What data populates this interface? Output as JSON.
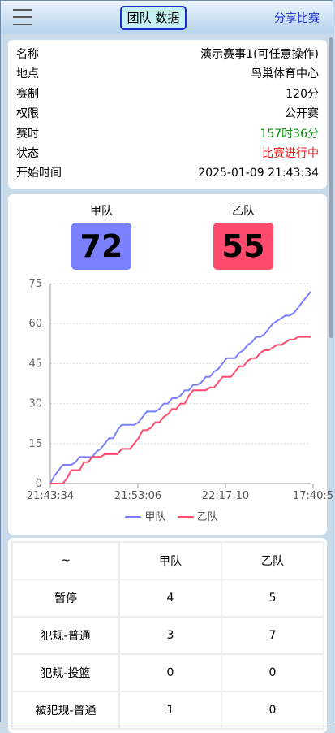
{
  "header": {
    "tab_label": "团队 数据",
    "share_label": "分享比赛"
  },
  "info": [
    {
      "label": "名称",
      "value": "演示赛事1(可任意操作)",
      "tone": ""
    },
    {
      "label": "地点",
      "value": "鸟巢体育中心",
      "tone": ""
    },
    {
      "label": "赛制",
      "value": "120分",
      "tone": ""
    },
    {
      "label": "权限",
      "value": "公开赛",
      "tone": ""
    },
    {
      "label": "赛时",
      "value": "157时36分",
      "tone": "green"
    },
    {
      "label": "状态",
      "value": "比赛进行中",
      "tone": "red"
    },
    {
      "label": "开始时间",
      "value": "2025-01-09 21:43:34",
      "tone": ""
    }
  ],
  "teams": {
    "a": {
      "name": "甲队",
      "score": "72",
      "color": "#7b80ff"
    },
    "b": {
      "name": "乙队",
      "score": "55",
      "color": "#ff4a6e"
    }
  },
  "chart_data": {
    "type": "line",
    "x_ticks": [
      "21:43:34",
      "21:53:06",
      "22:17:10",
      "17:40:5"
    ],
    "y_ticks": [
      0,
      15,
      30,
      45,
      60,
      75
    ],
    "ylim": [
      0,
      75
    ],
    "grid": true,
    "legend": "bottom",
    "series": [
      {
        "name": "甲队",
        "color": "#7b80ff",
        "values": [
          0,
          3,
          5,
          7,
          7,
          7,
          8,
          10,
          10,
          10,
          10,
          12,
          13,
          15,
          17,
          17,
          20,
          22,
          22,
          22,
          22,
          23,
          25,
          27,
          27,
          27,
          28,
          30,
          30,
          32,
          32,
          33,
          35,
          35,
          37,
          37,
          38,
          40,
          40,
          42,
          43,
          45,
          47,
          47,
          47,
          49,
          50,
          52,
          53,
          55,
          55,
          56,
          58,
          60,
          61,
          62,
          63,
          63,
          64,
          66,
          68,
          70,
          72
        ]
      },
      {
        "name": "乙队",
        "color": "#ff4a6e",
        "values": [
          0,
          0,
          0,
          0,
          2,
          5,
          5,
          5,
          8,
          8,
          10,
          10,
          10,
          11,
          11,
          11,
          11,
          13,
          13,
          13,
          15,
          17,
          20,
          20,
          21,
          23,
          23,
          25,
          26,
          28,
          28,
          30,
          30,
          33,
          35,
          35,
          35,
          35,
          36,
          36,
          38,
          40,
          40,
          40,
          42,
          44,
          44,
          46,
          47,
          47,
          49,
          50,
          50,
          51,
          52,
          52,
          53,
          54,
          54,
          55,
          55,
          55,
          55
        ]
      }
    ]
  },
  "table": {
    "headers": [
      "~",
      "甲队",
      "乙队"
    ],
    "rows": [
      [
        "暂停",
        "4",
        "5"
      ],
      [
        "犯规-普通",
        "3",
        "7"
      ],
      [
        "犯规-投篮",
        "0",
        "0"
      ],
      [
        "被犯规-普通",
        "1",
        "0"
      ]
    ]
  }
}
